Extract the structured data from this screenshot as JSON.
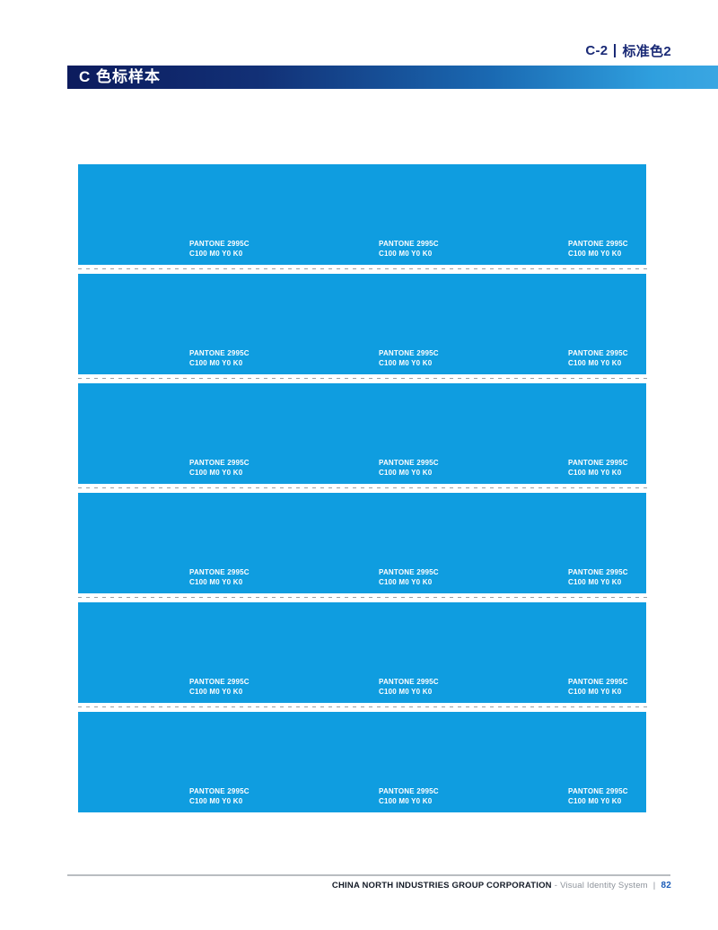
{
  "header": {
    "section_code": "C-2",
    "section_title": "标准色2",
    "bar_title": "C 色标样本"
  },
  "swatch": {
    "name": "PANTONE 2995C",
    "cmyk": "C100 M0 Y0 K0"
  },
  "grid": {
    "rows": 6,
    "cols": 3
  },
  "footer": {
    "company": "CHINA NORTH INDUSTRIES GROUP CORPORATION",
    "separator": "-",
    "system": "Visual Identity System",
    "divider": "|",
    "page_number": "82"
  },
  "colors": {
    "swatch_blue": "#0f9de0",
    "navy": "#1a2a76",
    "bar_gradient": [
      "#0c1b5d",
      "#123177",
      "#1a69b2",
      "#2f9fde",
      "#3aa6e2"
    ],
    "dash_dark": "#2e4e63",
    "dash_gray": "#9aa0a6",
    "dash_light": "#c9ced3",
    "footer_line": "#b9bdc1",
    "footer_dark": "#131a26",
    "footer_gray": "#8c929a",
    "page_num_blue": "#1a5cb8"
  }
}
